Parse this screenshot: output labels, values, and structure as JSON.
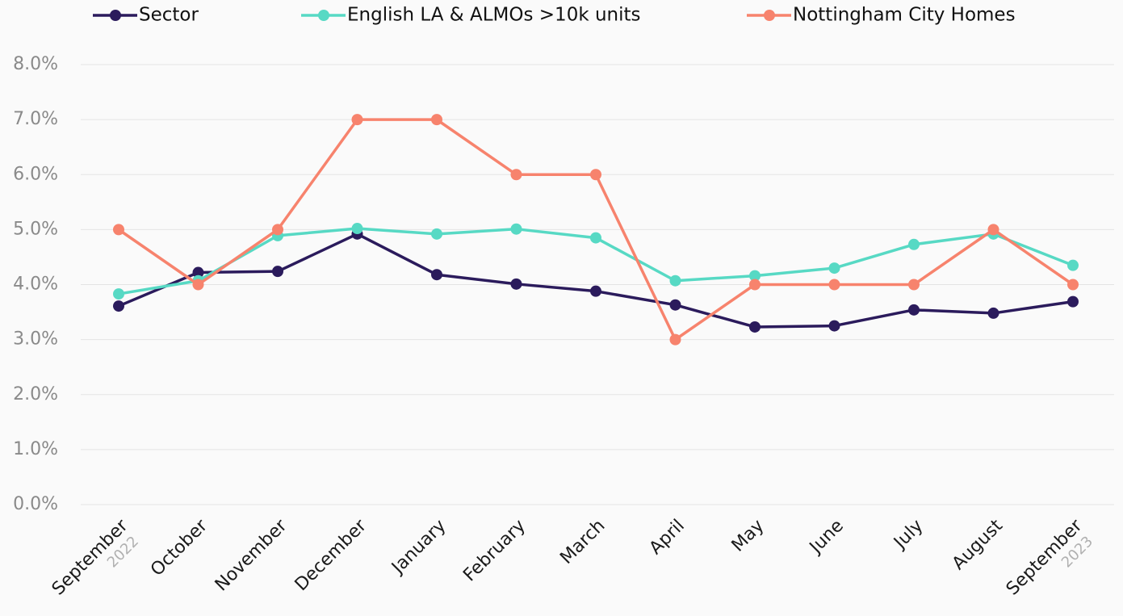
{
  "chart_data": {
    "type": "line",
    "categories": [
      "September",
      "October",
      "November",
      "December",
      "January",
      "February",
      "March",
      "April",
      "May",
      "June",
      "July",
      "August",
      "September"
    ],
    "year_labels": [
      "2022",
      null,
      null,
      null,
      null,
      null,
      null,
      null,
      null,
      null,
      null,
      null,
      "2023"
    ],
    "series": [
      {
        "name": "Sector",
        "color": "#2b1b5c",
        "values": [
          3.61,
          4.22,
          4.24,
          4.92,
          4.18,
          4.01,
          3.88,
          3.63,
          3.23,
          3.25,
          3.54,
          3.48,
          3.69
        ]
      },
      {
        "name": "English LA & ALMOs >10k units",
        "color": "#57d9c4",
        "values": [
          3.83,
          4.07,
          4.89,
          5.02,
          4.92,
          5.01,
          4.85,
          4.07,
          4.16,
          4.3,
          4.73,
          4.92,
          4.35
        ]
      },
      {
        "name": "Nottingham City Homes",
        "color": "#f7836d",
        "values": [
          5,
          4,
          5,
          7,
          7,
          6,
          6,
          3,
          4,
          4,
          4,
          5,
          4
        ]
      }
    ],
    "ylim": [
      0,
      8
    ],
    "yticks": [
      {
        "value": 0,
        "label": "0.0%"
      },
      {
        "value": 1,
        "label": "1.0%"
      },
      {
        "value": 2,
        "label": "2.0%"
      },
      {
        "value": 3,
        "label": "3.0%"
      },
      {
        "value": 4,
        "label": "4.0%"
      },
      {
        "value": 5,
        "label": "5.0%"
      },
      {
        "value": 6,
        "label": "6.0%"
      },
      {
        "value": 7,
        "label": "7.0%"
      },
      {
        "value": 8,
        "label": "8.0%"
      }
    ],
    "grid": true,
    "legend": "top"
  }
}
